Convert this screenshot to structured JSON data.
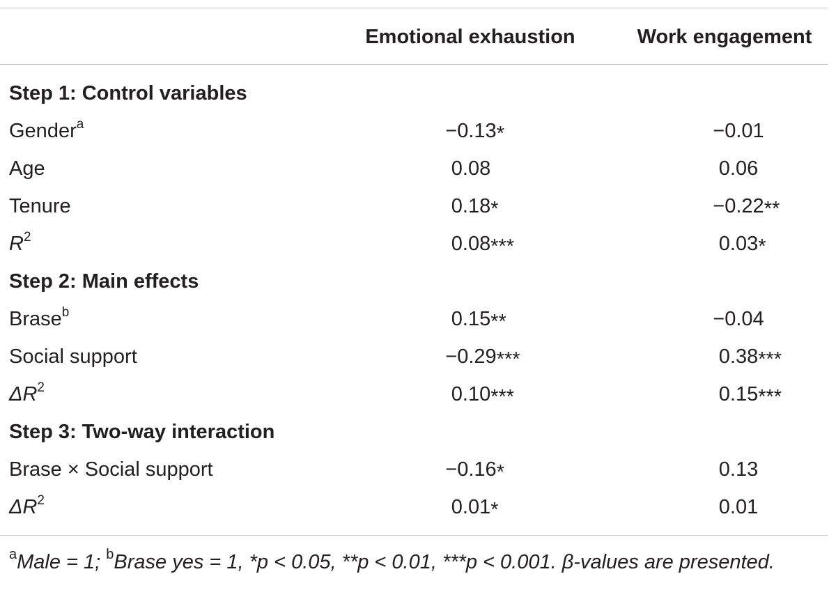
{
  "table": {
    "columns": [
      "Emotional exhaustion",
      "Work engagement"
    ],
    "sections": [
      {
        "title": "Step 1: Control variables",
        "rows": [
          {
            "label": "Gender",
            "label_sup": "a",
            "v1": "−0.13",
            "s1": "*",
            "v2": "−0.01",
            "s2": ""
          },
          {
            "label": "Age",
            "label_sup": "",
            "v1": "0.08",
            "s1": "",
            "v2": "0.06",
            "s2": ""
          },
          {
            "label": "Tenure",
            "label_sup": "",
            "v1": "0.18",
            "s1": "*",
            "v2": "−0.22",
            "s2": "**"
          },
          {
            "label": "R",
            "label_sup": "2",
            "v1": "0.08",
            "s1": "***",
            "v2": "0.03",
            "s2": "*"
          }
        ]
      },
      {
        "title": "Step 2: Main effects",
        "rows": [
          {
            "label": "Brase",
            "label_sup": "b",
            "v1": "0.15",
            "s1": "**",
            "v2": "−0.04",
            "s2": ""
          },
          {
            "label": "Social support",
            "label_sup": "",
            "v1": "−0.29",
            "s1": "***",
            "v2": "0.38",
            "s2": "***"
          },
          {
            "label": "ΔR",
            "label_sup": "2",
            "v1": "0.10",
            "s1": "***",
            "v2": "0.15",
            "s2": "***"
          }
        ]
      },
      {
        "title": "Step 3: Two-way interaction",
        "rows": [
          {
            "label": "Brase × Social support",
            "label_sup": "",
            "v1": "−0.16",
            "s1": "*",
            "v2": "0.13",
            "s2": ""
          },
          {
            "label": "ΔR",
            "label_sup": "2",
            "v1": "0.01",
            "s1": "*",
            "v2": "0.01",
            "s2": ""
          }
        ]
      }
    ]
  },
  "footnote": {
    "sup_a": "a",
    "part1": "Male = 1; ",
    "sup_b": "b",
    "part2": "Brase yes = 1, *p < 0.05, **p < 0.01, ***p < 0.001. ",
    "beta": "β",
    "part3": "-values are presented."
  }
}
